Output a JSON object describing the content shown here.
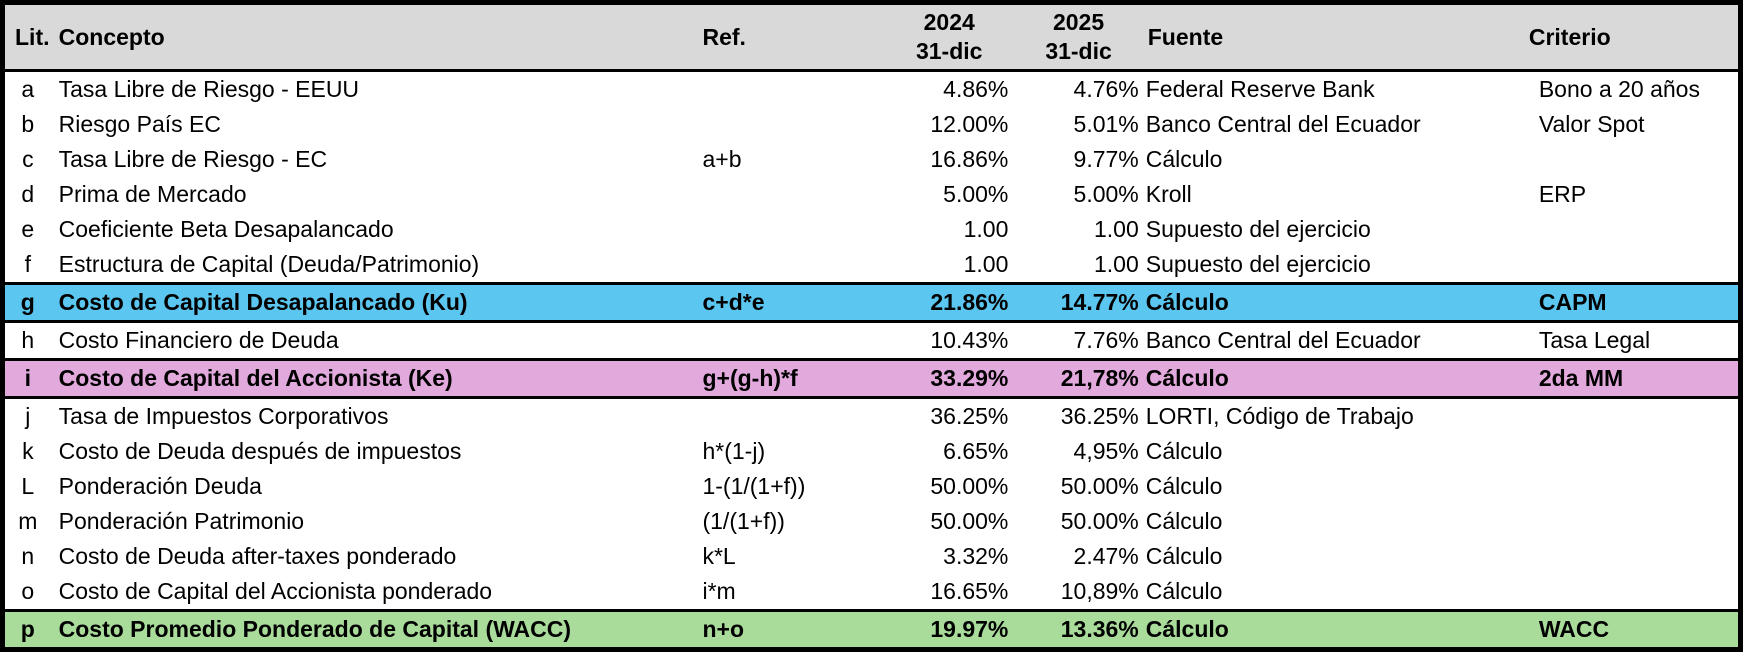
{
  "colors": {
    "header_bg": "#D9D9D9",
    "highlight_blue": "#5BC6EF",
    "highlight_pink": "#E2A9DC",
    "highlight_green": "#A9DC9A",
    "border": "#000000"
  },
  "header": {
    "lit": "Lit.",
    "concepto": "Concepto",
    "ref": "Ref.",
    "y2024": {
      "year": "2024",
      "date": "31-dic"
    },
    "y2025": {
      "year": "2025",
      "date": "31-dic"
    },
    "fuente": "Fuente",
    "criterio": "Criterio"
  },
  "chart_data": {
    "type": "table",
    "title": "Costo Promedio Ponderado de Capital (WACC)",
    "columns": [
      "Lit.",
      "Concepto",
      "Ref.",
      "2024 31-dic",
      "2025 31-dic",
      "Fuente",
      "Criterio"
    ],
    "rows": [
      {
        "lit": "a",
        "concepto": "Tasa Libre de Riesgo - EEUU",
        "ref": "",
        "y2024": "4.86%",
        "y2025": "4.76%",
        "fuente": "Federal Reserve Bank",
        "criterio": "Bono a 20 años",
        "highlight": "none"
      },
      {
        "lit": "b",
        "concepto": "Riesgo País EC",
        "ref": "",
        "y2024": "12.00%",
        "y2025": "5.01%",
        "fuente": "Banco Central del Ecuador",
        "criterio": "Valor Spot",
        "highlight": "none"
      },
      {
        "lit": "c",
        "concepto": "Tasa Libre de Riesgo - EC",
        "ref": "a+b",
        "y2024": "16.86%",
        "y2025": "9.77%",
        "fuente": "Cálculo",
        "criterio": "",
        "highlight": "none"
      },
      {
        "lit": "d",
        "concepto": "Prima de Mercado",
        "ref": "",
        "y2024": "5.00%",
        "y2025": "5.00%",
        "fuente": "Kroll",
        "criterio": "ERP",
        "highlight": "none"
      },
      {
        "lit": "e",
        "concepto": "Coeficiente Beta Desapalancado",
        "ref": "",
        "y2024": "1.00",
        "y2025": "1.00",
        "fuente": "Supuesto del ejercicio",
        "criterio": "",
        "highlight": "none"
      },
      {
        "lit": "f",
        "concepto": "Estructura de Capital (Deuda/Patrimonio)",
        "ref": "",
        "y2024": "1.00",
        "y2025": "1.00",
        "fuente": "Supuesto del ejercicio",
        "criterio": "",
        "highlight": "none"
      },
      {
        "lit": "g",
        "concepto": "Costo de Capital Desapalancado (Ku)",
        "ref": "c+d*e",
        "y2024": "21.86%",
        "y2025": "14.77%",
        "fuente": "Cálculo",
        "criterio": "CAPM",
        "highlight": "blue"
      },
      {
        "lit": "h",
        "concepto": "Costo Financiero de Deuda",
        "ref": "",
        "y2024": "10.43%",
        "y2025": "7.76%",
        "fuente": "Banco Central del Ecuador",
        "criterio": "Tasa Legal",
        "highlight": "none"
      },
      {
        "lit": "i",
        "concepto": "Costo de Capital del Accionista (Ke)",
        "ref": "g+(g-h)*f",
        "y2024": "33.29%",
        "y2025": "21,78%",
        "fuente": "Cálculo",
        "criterio": "2da MM",
        "highlight": "pink"
      },
      {
        "lit": "j",
        "concepto": "Tasa de Impuestos Corporativos",
        "ref": "",
        "y2024": "36.25%",
        "y2025": "36.25%",
        "fuente": "LORTI, Código de Trabajo",
        "criterio": "",
        "highlight": "none"
      },
      {
        "lit": "k",
        "concepto": "Costo de Deuda después de impuestos",
        "ref": "h*(1-j)",
        "y2024": "6.65%",
        "y2025": "4,95%",
        "fuente": "Cálculo",
        "criterio": "",
        "highlight": "none"
      },
      {
        "lit": "L",
        "concepto": "Ponderación Deuda",
        "ref": "1-(1/(1+f))",
        "y2024": "50.00%",
        "y2025": "50.00%",
        "fuente": "Cálculo",
        "criterio": "",
        "highlight": "none"
      },
      {
        "lit": "m",
        "concepto": "Ponderación Patrimonio",
        "ref": "(1/(1+f))",
        "y2024": "50.00%",
        "y2025": "50.00%",
        "fuente": "Cálculo",
        "criterio": "",
        "highlight": "none"
      },
      {
        "lit": "n",
        "concepto": "Costo de Deuda after-taxes ponderado",
        "ref": "k*L",
        "y2024": "3.32%",
        "y2025": "2.47%",
        "fuente": "Cálculo",
        "criterio": "",
        "highlight": "none"
      },
      {
        "lit": "o",
        "concepto": "Costo de Capital del Accionista ponderado",
        "ref": "i*m",
        "y2024": "16.65%",
        "y2025": "10,89%",
        "fuente": "Cálculo",
        "criterio": "",
        "highlight": "none"
      },
      {
        "lit": "p",
        "concepto": "Costo Promedio Ponderado de Capital (WACC)",
        "ref": "n+o",
        "y2024": "19.97%",
        "y2025": "13.36%",
        "fuente": "Cálculo",
        "criterio": "WACC",
        "highlight": "green"
      }
    ]
  }
}
